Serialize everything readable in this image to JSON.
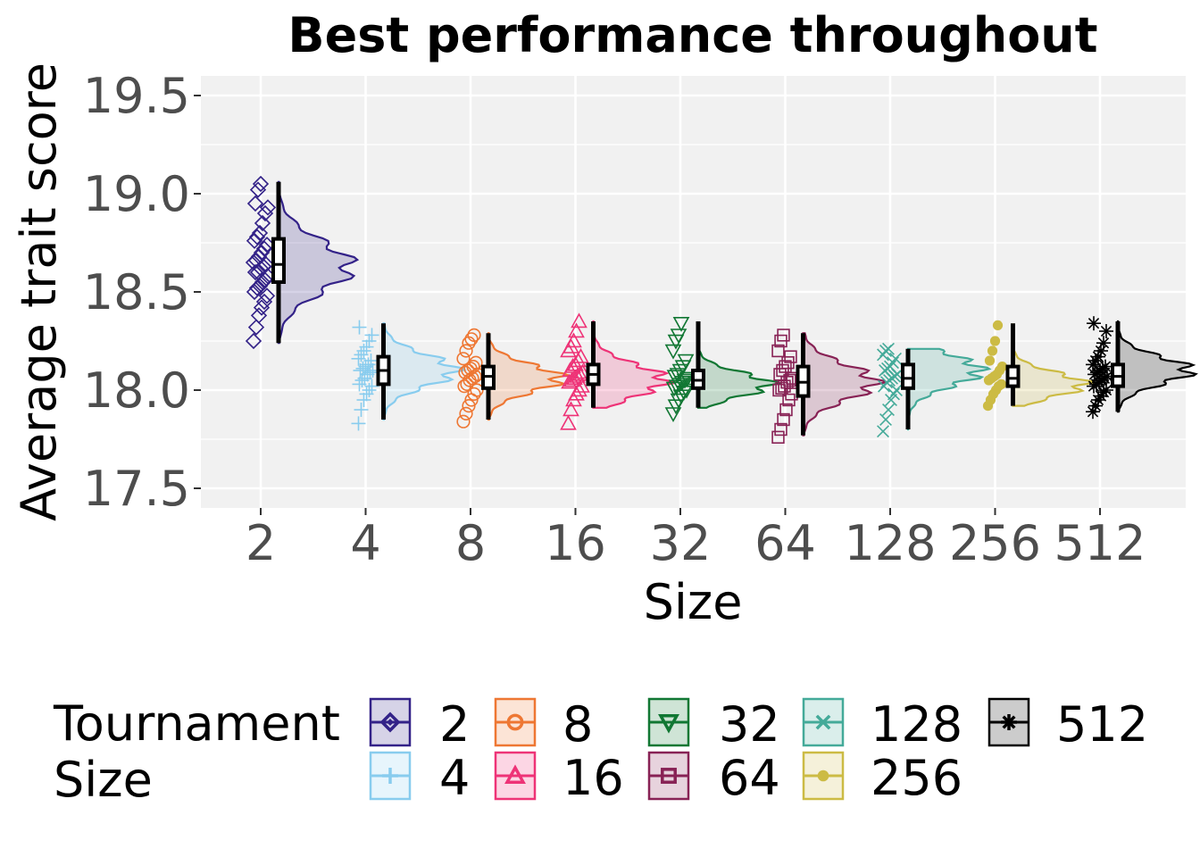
{
  "chart_data": {
    "type": "raincloud",
    "title": "Best performance throughout",
    "xlabel": "Size",
    "ylabel": "Average trait score",
    "ylim": [
      17.4,
      19.6
    ],
    "yticks": [
      "17.5",
      "18.0",
      "18.5",
      "19.0",
      "19.5"
    ],
    "categories": [
      "2",
      "4",
      "8",
      "16",
      "32",
      "64",
      "128",
      "256",
      "512"
    ],
    "grid": true,
    "legend": {
      "position": "bottom",
      "title_line1": "Tournament",
      "title_line2": "Size"
    },
    "series": [
      {
        "name": "2",
        "color": "#332288",
        "shape": "diamond",
        "min": 18.24,
        "q1": 18.55,
        "median": 18.64,
        "q3": 18.77,
        "max": 19.06,
        "mode": 18.63,
        "spread": 0.13,
        "points": [
          18.25,
          18.32,
          18.38,
          18.42,
          18.45,
          18.48,
          18.5,
          18.52,
          18.53,
          18.55,
          18.56,
          18.58,
          18.6,
          18.6,
          18.62,
          18.63,
          18.64,
          18.65,
          18.66,
          18.68,
          18.7,
          18.72,
          18.74,
          18.76,
          18.78,
          18.8,
          18.85,
          18.9,
          18.93,
          18.95,
          19.02,
          19.05
        ]
      },
      {
        "name": "4",
        "color": "#88CCEE",
        "shape": "plus",
        "min": 17.85,
        "q1": 18.03,
        "median": 18.1,
        "q3": 18.17,
        "max": 18.34,
        "mode": 18.1,
        "spread": 0.08,
        "points": [
          17.83,
          17.9,
          17.95,
          17.98,
          18.0,
          18.02,
          18.03,
          18.05,
          18.06,
          18.08,
          18.09,
          18.1,
          18.1,
          18.11,
          18.12,
          18.13,
          18.15,
          18.16,
          18.18,
          18.2,
          18.22,
          18.25,
          18.28,
          18.32
        ]
      },
      {
        "name": "8",
        "color": "#EE7733",
        "shape": "circle",
        "min": 17.85,
        "q1": 18.01,
        "median": 18.07,
        "q3": 18.12,
        "max": 18.29,
        "mode": 18.06,
        "spread": 0.07,
        "points": [
          17.84,
          17.88,
          17.92,
          17.95,
          17.98,
          18.0,
          18.02,
          18.03,
          18.05,
          18.06,
          18.07,
          18.08,
          18.09,
          18.1,
          18.11,
          18.12,
          18.14,
          18.16,
          18.2,
          18.24,
          18.26,
          18.28
        ]
      },
      {
        "name": "16",
        "color": "#EE3377",
        "shape": "triangle",
        "min": 17.91,
        "q1": 18.03,
        "median": 18.08,
        "q3": 18.13,
        "max": 18.35,
        "mode": 18.05,
        "spread": 0.08,
        "points": [
          17.83,
          17.9,
          17.95,
          17.98,
          18.0,
          18.02,
          18.04,
          18.05,
          18.06,
          18.07,
          18.08,
          18.09,
          18.1,
          18.12,
          18.13,
          18.15,
          18.17,
          18.2,
          18.22,
          18.25,
          18.3,
          18.35
        ]
      },
      {
        "name": "32",
        "color": "#117733",
        "shape": "triangledown",
        "min": 17.91,
        "q1": 18.01,
        "median": 18.05,
        "q3": 18.1,
        "max": 18.35,
        "mode": 18.03,
        "spread": 0.06,
        "points": [
          17.88,
          17.92,
          17.95,
          17.97,
          17.99,
          18.0,
          18.01,
          18.02,
          18.03,
          18.04,
          18.05,
          18.06,
          18.07,
          18.08,
          18.1,
          18.12,
          18.15,
          18.2,
          18.25,
          18.28,
          18.34
        ]
      },
      {
        "name": "64",
        "color": "#882255",
        "shape": "square",
        "min": 17.77,
        "q1": 17.97,
        "median": 18.04,
        "q3": 18.12,
        "max": 18.29,
        "mode": 18.04,
        "spread": 0.09,
        "points": [
          17.76,
          17.8,
          17.85,
          17.9,
          17.95,
          17.98,
          18.0,
          18.01,
          18.02,
          18.04,
          18.05,
          18.06,
          18.08,
          18.1,
          18.12,
          18.14,
          18.17,
          18.2,
          18.25,
          18.28
        ]
      },
      {
        "name": "128",
        "color": "#44AA99",
        "shape": "cross",
        "min": 17.8,
        "q1": 18.01,
        "median": 18.06,
        "q3": 18.13,
        "max": 18.21,
        "mode": 18.1,
        "spread": 0.08,
        "points": [
          17.79,
          17.85,
          17.9,
          17.95,
          17.98,
          18.0,
          18.02,
          18.04,
          18.05,
          18.06,
          18.07,
          18.08,
          18.1,
          18.11,
          18.12,
          18.14,
          18.16,
          18.18,
          18.2,
          18.21
        ]
      },
      {
        "name": "256",
        "color": "#CCBB44",
        "shape": "dot",
        "min": 17.92,
        "q1": 18.02,
        "median": 18.06,
        "q3": 18.12,
        "max": 18.34,
        "mode": 18.03,
        "spread": 0.06,
        "points": [
          17.92,
          17.95,
          17.98,
          18.0,
          18.02,
          18.03,
          18.05,
          18.06,
          18.07,
          18.08,
          18.1,
          18.12,
          18.15,
          18.2,
          18.25,
          18.33
        ]
      },
      {
        "name": "512",
        "color": "#000000",
        "shape": "asterisk",
        "min": 17.89,
        "q1": 18.02,
        "median": 18.07,
        "q3": 18.13,
        "max": 18.35,
        "mode": 18.1,
        "spread": 0.07,
        "points": [
          17.89,
          17.92,
          17.95,
          17.97,
          17.99,
          18.0,
          18.02,
          18.03,
          18.04,
          18.05,
          18.06,
          18.07,
          18.08,
          18.09,
          18.1,
          18.11,
          18.12,
          18.13,
          18.15,
          18.17,
          18.2,
          18.24,
          18.3,
          18.34
        ]
      }
    ]
  }
}
